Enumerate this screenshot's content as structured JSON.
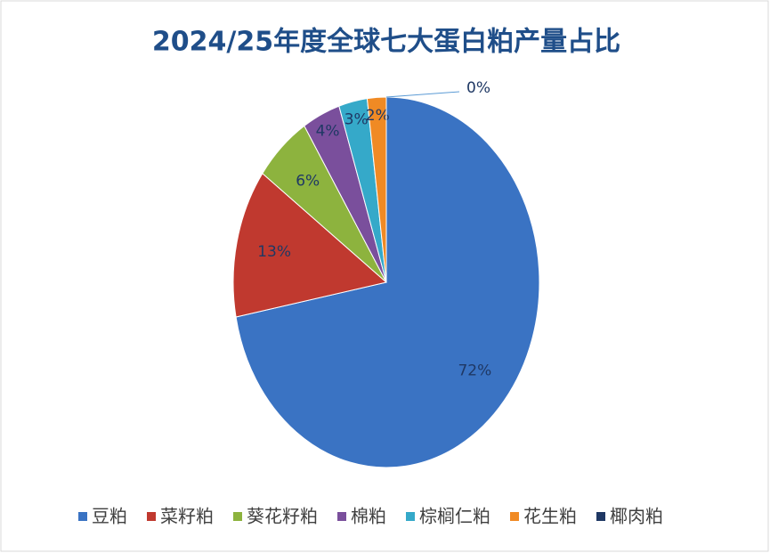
{
  "chart_data": {
    "type": "pie",
    "title": "2024/25年度全球七大蛋白粕产量占比",
    "categories": [
      "豆粕",
      "菜籽粕",
      "葵花籽粕",
      "棉粕",
      "棕榈仁粕",
      "花生粕",
      "椰肉粕"
    ],
    "values": [
      72,
      13,
      6,
      4,
      3,
      2,
      0
    ],
    "value_labels": [
      "72%",
      "13%",
      "6%",
      "4%",
      "3%",
      "2%",
      "0%"
    ],
    "colors": [
      "#3a73c3",
      "#c0392f",
      "#8db33e",
      "#7a4f9c",
      "#35a9c9",
      "#f08a24",
      "#1f3864"
    ],
    "legend": "bottom"
  }
}
